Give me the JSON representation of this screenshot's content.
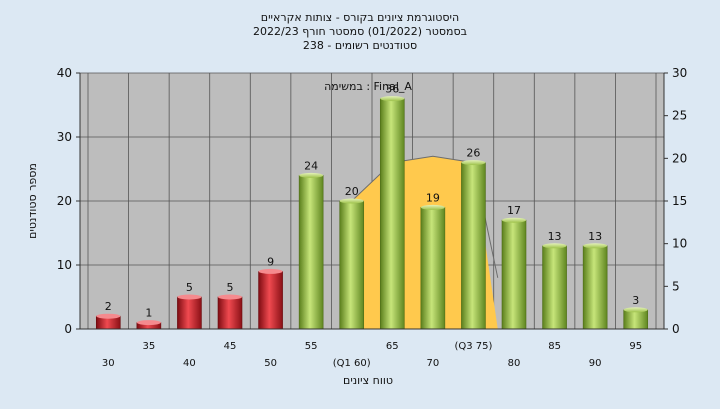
{
  "title_lines": [
    "היסטוגרמת ציונים בקורס - צותות אקראיים",
    "בסמסטר  (01/2022)  סמסטר חורף  2022/23",
    "238 - סטודנטים רשומים"
  ],
  "annotation": "במשימה : Final_A",
  "chart_data": {
    "type": "bar",
    "categories": [
      "30",
      "35",
      "40",
      "45",
      "50",
      "55",
      "(Q1 60)",
      "65",
      "70",
      "(Q3 75)",
      "80",
      "85",
      "90",
      "95"
    ],
    "values": [
      2,
      1,
      5,
      5,
      9,
      24,
      20,
      36,
      19,
      26,
      17,
      13,
      13,
      3
    ],
    "data_labels": [
      "2",
      "1",
      "5",
      "5",
      "9",
      "24",
      "20",
      "36",
      "19",
      "26",
      "17",
      "13",
      "13",
      "3"
    ],
    "bar_colors": [
      "red",
      "red",
      "red",
      "red",
      "red",
      "green",
      "green",
      "green",
      "green",
      "green",
      "green",
      "green",
      "green",
      "green"
    ],
    "colors": {
      "red": "#d8242c",
      "green": "#95c13c",
      "area": "#ffc94d"
    },
    "xlabel": "טווח ציונים",
    "ylabel": "מספר סטודנטים",
    "ylim": [
      0,
      40
    ],
    "y_ticks": [
      "0",
      "10",
      "20",
      "30",
      "40"
    ],
    "y2lim": [
      0,
      30
    ],
    "y2_ticks": [
      "0",
      "5",
      "10",
      "15",
      "20",
      "25",
      "30"
    ],
    "area_series": {
      "x_start": "(Q1 60)",
      "x_end": "(Q3 75)",
      "values": [
        20,
        26,
        27,
        26
      ]
    },
    "grid": true
  }
}
